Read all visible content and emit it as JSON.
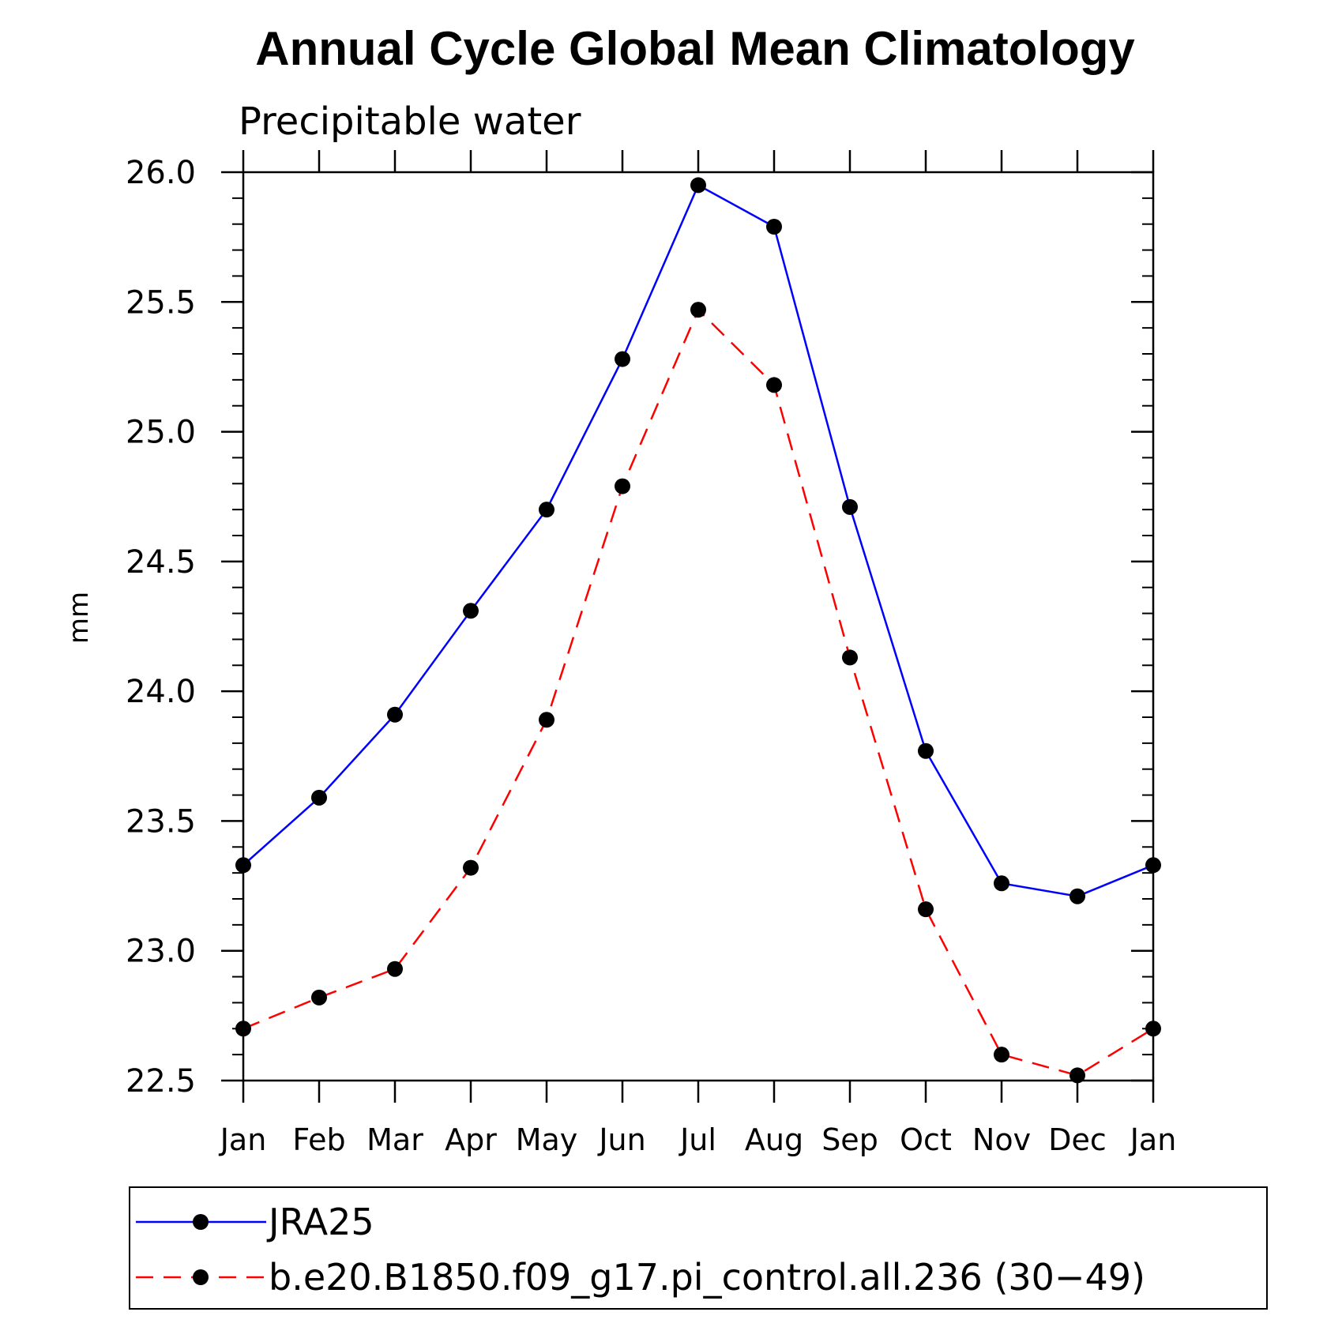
{
  "chart_data": {
    "type": "line",
    "title": "Annual Cycle Global Mean Climatology",
    "subtitle": "Precipitable water",
    "xlabel": "",
    "ylabel": "mm",
    "categories": [
      "Jan",
      "Feb",
      "Mar",
      "Apr",
      "May",
      "Jun",
      "Jul",
      "Aug",
      "Sep",
      "Oct",
      "Nov",
      "Dec",
      "Jan"
    ],
    "y_ticks": [
      "22.5",
      "23.0",
      "23.5",
      "24.0",
      "24.5",
      "25.0",
      "25.5",
      "26.0"
    ],
    "ylim": [
      22.5,
      26.0
    ],
    "grid": false,
    "legend_position": "bottom",
    "series": [
      {
        "name": "JRA25",
        "color": "#0000ff",
        "line_style": "solid",
        "marker": "filled-circle",
        "values": [
          23.33,
          23.59,
          23.91,
          24.31,
          24.7,
          25.28,
          25.95,
          25.79,
          24.71,
          23.77,
          23.26,
          23.21,
          23.33
        ]
      },
      {
        "name": "b.e20.B1850.f09_g17.pi_control.all.236 (30−49)",
        "color": "#ff0000",
        "line_style": "dashed",
        "marker": "filled-circle",
        "values": [
          22.7,
          22.82,
          22.93,
          23.32,
          23.89,
          24.79,
          25.47,
          25.18,
          24.13,
          23.16,
          22.6,
          22.52,
          22.7
        ]
      }
    ]
  }
}
